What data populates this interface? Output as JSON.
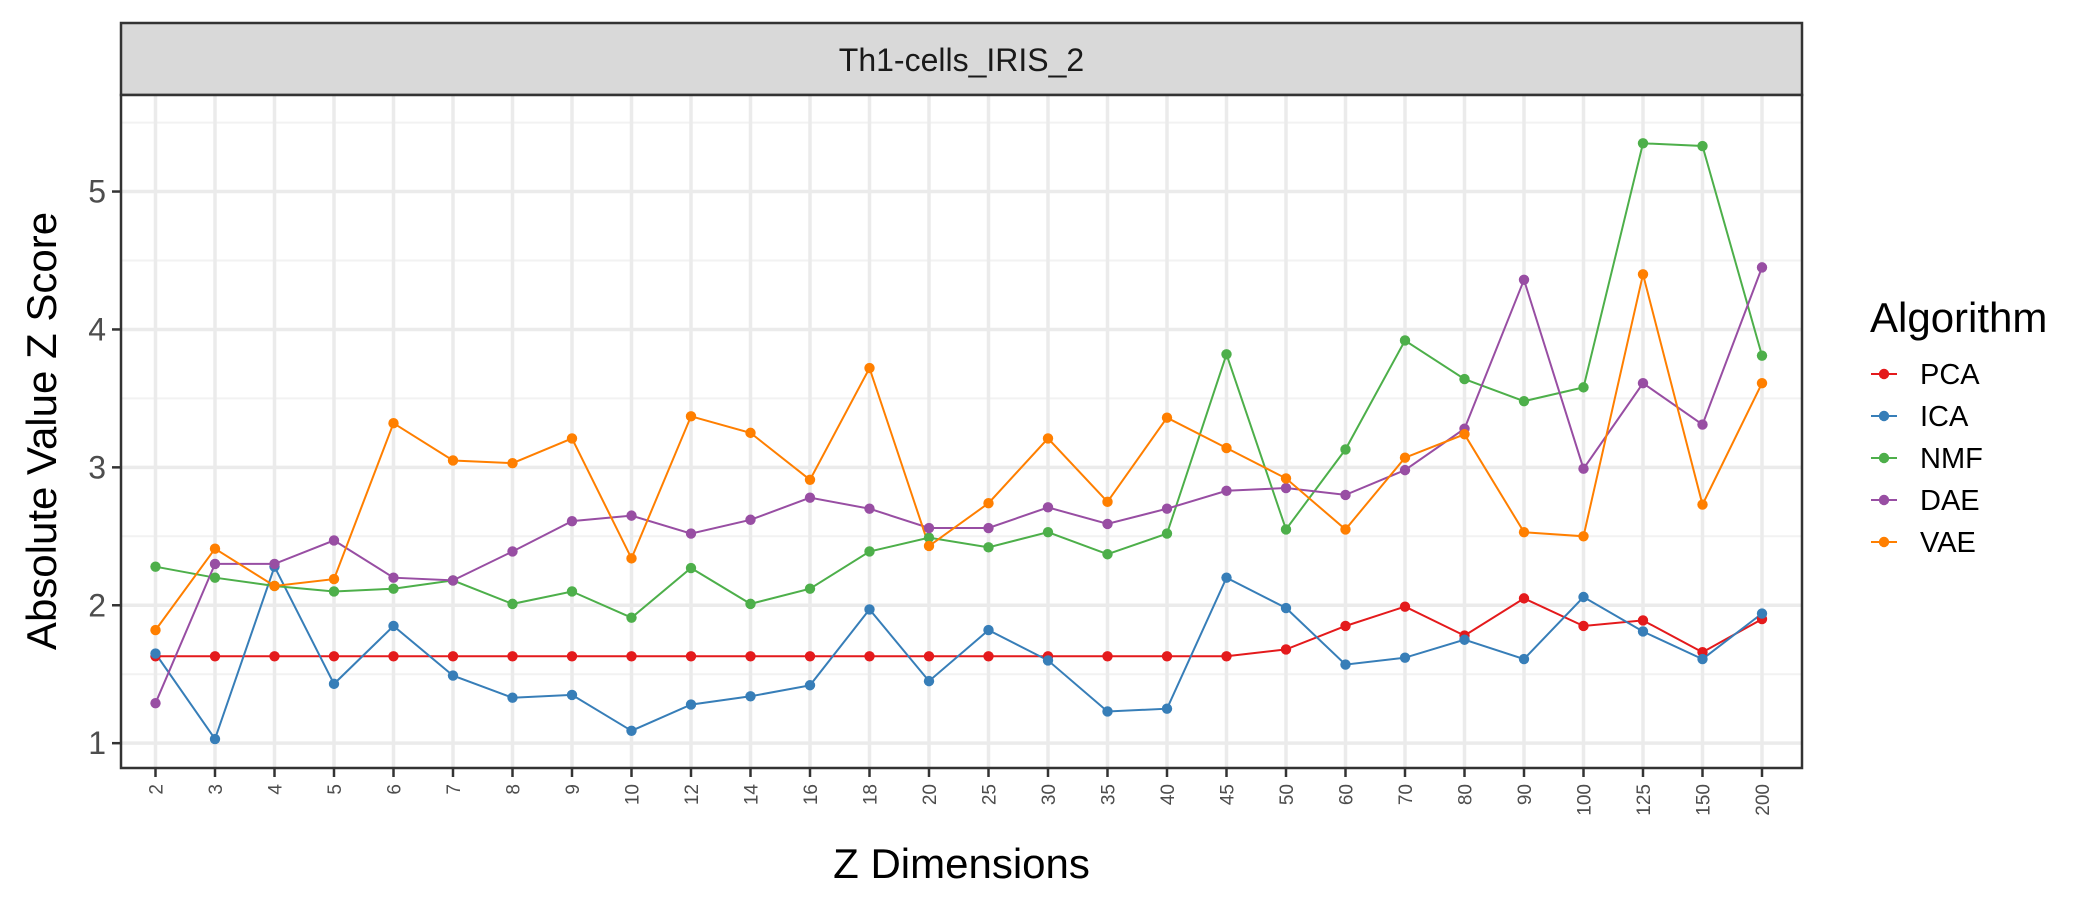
{
  "chart_data": {
    "type": "line",
    "facet_label": "Th1-cells_IRIS_2",
    "xlabel": "Z Dimensions",
    "ylabel": "Absolute Value Z Score",
    "legend_title": "Algorithm",
    "legend_position": "right",
    "grid": true,
    "ylim": [
      0.82,
      5.7
    ],
    "yticks": [
      1,
      2,
      3,
      4,
      5
    ],
    "categories": [
      "2",
      "3",
      "4",
      "5",
      "6",
      "7",
      "8",
      "9",
      "10",
      "12",
      "14",
      "16",
      "18",
      "20",
      "25",
      "30",
      "35",
      "40",
      "45",
      "50",
      "60",
      "70",
      "80",
      "90",
      "100",
      "125",
      "150",
      "200"
    ],
    "series": [
      {
        "name": "PCA",
        "color": "#e41a1c",
        "values": [
          1.63,
          1.63,
          1.63,
          1.63,
          1.63,
          1.63,
          1.63,
          1.63,
          1.63,
          1.63,
          1.63,
          1.63,
          1.63,
          1.63,
          1.63,
          1.63,
          1.63,
          1.63,
          1.63,
          1.68,
          1.85,
          1.99,
          1.78,
          2.05,
          1.85,
          1.89,
          1.66,
          1.9
        ]
      },
      {
        "name": "ICA",
        "color": "#377eb8",
        "values": [
          1.65,
          1.03,
          2.28,
          1.43,
          1.85,
          1.49,
          1.33,
          1.35,
          1.09,
          1.28,
          1.34,
          1.42,
          1.97,
          1.45,
          1.82,
          1.6,
          1.23,
          1.25,
          2.2,
          1.98,
          1.57,
          1.62,
          1.75,
          1.61,
          2.06,
          1.81,
          1.61,
          1.94
        ]
      },
      {
        "name": "NMF",
        "color": "#4daf4a",
        "values": [
          2.28,
          2.2,
          2.14,
          2.1,
          2.12,
          2.18,
          2.01,
          2.1,
          1.91,
          2.27,
          2.01,
          2.12,
          2.39,
          2.49,
          2.42,
          2.53,
          2.37,
          2.52,
          3.82,
          2.55,
          3.13,
          3.92,
          3.64,
          3.48,
          3.58,
          5.35,
          5.33,
          3.81
        ]
      },
      {
        "name": "DAE",
        "color": "#984ea3",
        "values": [
          1.29,
          2.3,
          2.3,
          2.47,
          2.2,
          2.18,
          2.39,
          2.61,
          2.65,
          2.52,
          2.62,
          2.78,
          2.7,
          2.56,
          2.56,
          2.71,
          2.59,
          2.7,
          2.83,
          2.85,
          2.8,
          2.98,
          3.28,
          4.36,
          2.99,
          3.61,
          3.31,
          4.45
        ]
      },
      {
        "name": "VAE",
        "color": "#ff7f00",
        "values": [
          1.82,
          2.41,
          2.14,
          2.19,
          3.32,
          3.05,
          3.03,
          3.21,
          2.34,
          3.37,
          3.25,
          2.91,
          3.72,
          2.43,
          2.74,
          3.21,
          2.75,
          3.36,
          3.14,
          2.92,
          2.55,
          3.07,
          3.24,
          2.53,
          2.5,
          4.4,
          2.73,
          3.61
        ]
      }
    ]
  }
}
